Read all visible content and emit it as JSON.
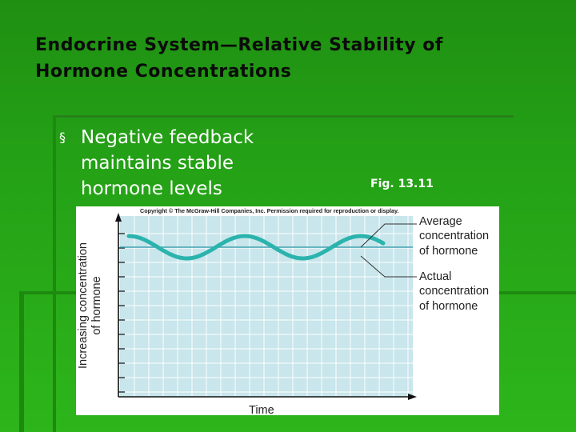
{
  "slide": {
    "title_lines": [
      "Endocrine System—Relative Stability of",
      "Hormone Concentrations"
    ],
    "bullet_symbol": "§",
    "bullet_lines": [
      "Negative feedback",
      "maintains stable",
      "hormone levels"
    ],
    "figure_caption": "Fig. 13.11"
  },
  "figure": {
    "copyright": "Copyright © The McGraw-Hill Companies, Inc. Permission required for reproduction or display.",
    "ylabel_lines": [
      "Increasing concentration",
      "of hormone"
    ],
    "xlabel": "Time",
    "annotation_average": [
      "Average",
      "concentration",
      "of hormone"
    ],
    "annotation_actual": [
      "Actual",
      "concentration",
      "of hormone"
    ],
    "colors": {
      "plot_background": "#c8e6eb",
      "grid": "#ffffff",
      "wave": "#2bb3ad",
      "average_line": "#3a9fb0"
    }
  },
  "colors": {
    "slide_background": "#24a016",
    "title_text": "#0b0b0b",
    "body_text": "#ffffff"
  }
}
